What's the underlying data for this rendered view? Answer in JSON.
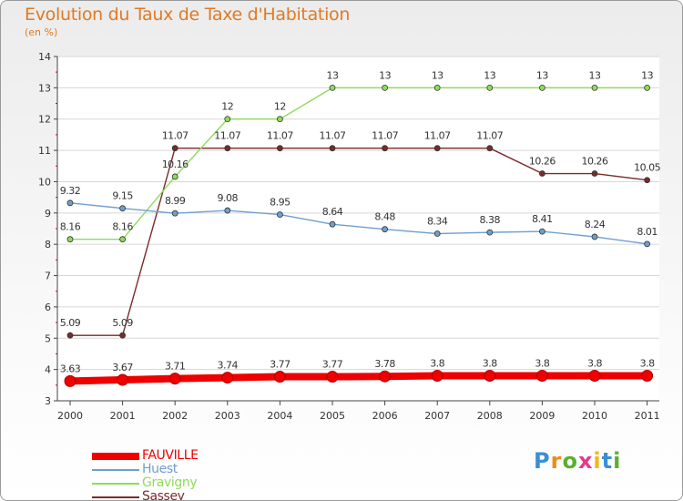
{
  "title": "Evolution du Taux de Taxe d'Habitation",
  "subtitle": "(en %)",
  "brand": {
    "letters": [
      "P",
      "r",
      "o",
      "x",
      "i",
      "t",
      "i"
    ],
    "colors": [
      "#3a8fd4",
      "#f08a1c",
      "#5ab030",
      "#e23b8a",
      "#f0b81c",
      "#3a8fd4",
      "#5ab030"
    ]
  },
  "chart_data": {
    "type": "line",
    "title": "Evolution du Taux de Taxe d'Habitation",
    "ylabel": "(en %)",
    "xlabel": "",
    "x": [
      "2000",
      "2001",
      "2002",
      "2003",
      "2004",
      "2005",
      "2006",
      "2007",
      "2008",
      "2009",
      "2010",
      "2011"
    ],
    "ylim": [
      3,
      14
    ],
    "yticks": [
      "3",
      "4",
      "5",
      "6",
      "7",
      "8",
      "9",
      "10",
      "11",
      "12",
      "13",
      "14"
    ],
    "grid": "horizontal",
    "legend": "bottom-left",
    "series": [
      {
        "name": "FAUVILLE",
        "color": "#ee0000",
        "values": [
          3.63,
          3.67,
          3.71,
          3.74,
          3.77,
          3.77,
          3.78,
          3.8,
          3.8,
          3.8,
          3.8,
          3.8
        ],
        "labels": [
          "3.63",
          "3.67",
          "3.71",
          "3.74",
          "3.77",
          "3.77",
          "3.78",
          "3.8",
          "3.8",
          "3.8",
          "3.8",
          "3.8"
        ]
      },
      {
        "name": "Huest",
        "color": "#6f9fd0",
        "values": [
          9.32,
          9.15,
          8.99,
          9.08,
          8.95,
          8.64,
          8.48,
          8.34,
          8.38,
          8.41,
          8.24,
          8.01
        ],
        "labels": [
          "9.32",
          "9.15",
          "8.99",
          "9.08",
          "8.95",
          "8.64",
          "8.48",
          "8.34",
          "8.38",
          "8.41",
          "8.24",
          "8.01"
        ]
      },
      {
        "name": "Gravigny",
        "color": "#8fdc5a",
        "values": [
          8.16,
          8.16,
          10.16,
          12,
          12,
          13,
          13,
          13,
          13,
          13,
          13,
          13
        ],
        "labels": [
          "8.16",
          "8.16",
          "10.16",
          "12",
          "12",
          "13",
          "13",
          "13",
          "13",
          "13",
          "13",
          "13"
        ]
      },
      {
        "name": "Sassey",
        "color": "#7a2a2a",
        "values": [
          5.09,
          5.09,
          11.07,
          11.07,
          11.07,
          11.07,
          11.07,
          11.07,
          11.07,
          10.26,
          10.26,
          10.05
        ],
        "labels": [
          "5.09",
          "5.09",
          "11.07",
          "11.07",
          "11.07",
          "11.07",
          "11.07",
          "11.07",
          "11.07",
          "10.26",
          "10.26",
          "10.05"
        ]
      }
    ]
  }
}
